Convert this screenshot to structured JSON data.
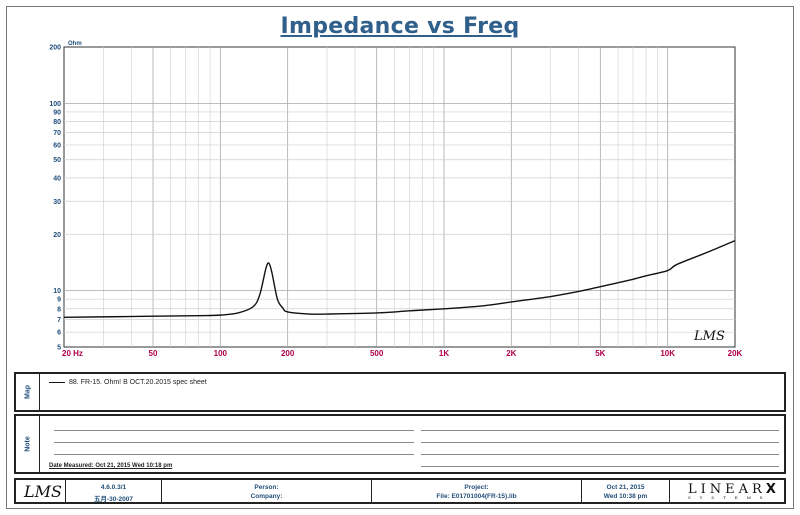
{
  "title": "Impedance vs Freq",
  "chart_data": {
    "type": "line",
    "title": "Impedance vs Freq",
    "y_unit": "Ohm",
    "x_scale": "log",
    "y_scale": "log",
    "xlim": [
      20,
      20000
    ],
    "ylim": [
      5,
      200
    ],
    "grid": true,
    "x_ticks": [
      "20 Hz",
      "50",
      "100",
      "200",
      "500",
      "1K",
      "2K",
      "5K",
      "10K",
      "20K"
    ],
    "y_ticks": [
      "200",
      "100",
      "90",
      "80",
      "70",
      "60",
      "50",
      "40",
      "30",
      "20",
      "10",
      "9",
      "8",
      "7",
      "6",
      "5"
    ],
    "series": [
      {
        "name": "88. FR-15. Ohm! B OCT.20.2015 spec sheet",
        "color": "#111111",
        "x": [
          20,
          50,
          80,
          100,
          120,
          140,
          150,
          160,
          165,
          170,
          180,
          190,
          200,
          250,
          300,
          500,
          700,
          1000,
          1500,
          2000,
          3000,
          4000,
          5000,
          7000,
          8000,
          10000,
          11000,
          15000,
          20000
        ],
        "y": [
          7.2,
          7.3,
          7.35,
          7.4,
          7.6,
          8.2,
          9.5,
          13.2,
          14.0,
          12.5,
          9.0,
          8.1,
          7.7,
          7.5,
          7.5,
          7.6,
          7.8,
          8.0,
          8.3,
          8.7,
          9.3,
          9.9,
          10.5,
          11.5,
          12.0,
          12.8,
          13.8,
          16.0,
          18.5
        ]
      }
    ]
  },
  "watermark_logo": "LMS",
  "map": {
    "label": "Map",
    "legend_text": "88. FR-15. Ohm! B OCT.20.2015 spec sheet"
  },
  "note": {
    "label": "Note",
    "date_measured": "Date Measured: Oct 21, 2015  Wed 10:18 pm"
  },
  "footer": {
    "logo": "LMS",
    "version_line1": "4.6.0.3/1",
    "version_line2": "五月-30-2007",
    "person_label": "Person:",
    "company_label": "Company:",
    "project_label": "Project:",
    "file_label": "File: E01701004(FR-15).lib",
    "date": "Oct 21, 2015",
    "time": "Wed 10:38 pm",
    "brand": "LINEAR",
    "brand_x": "X",
    "brand_sub": "SYSTEMS"
  }
}
